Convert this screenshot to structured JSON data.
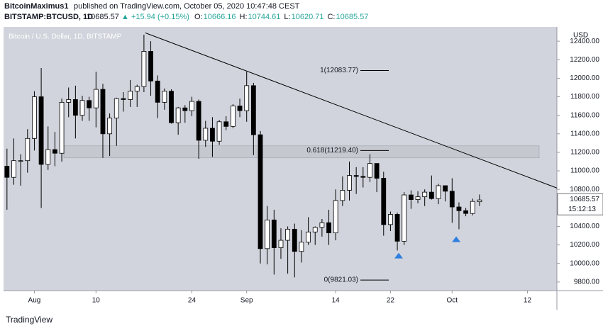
{
  "header": {
    "author": "BitcoinMaximus1",
    "published": "published on TradingView.com, October 05, 2020 10:47:48 CEST",
    "symbol": "BITSTAMP:BTCUSD, 1D",
    "change": "▲ +15.94 (+0.15%)",
    "ohlc": [
      {
        "label": "O:",
        "value": 10666.16
      },
      {
        "label": "H:",
        "value": 10744.61
      },
      {
        "label": "L:",
        "value": 10620.71
      },
      {
        "label": "C:",
        "value": 10685.57
      }
    ]
  },
  "footer": {
    "brand": "TradingView"
  },
  "chart_data": {
    "type": "candlestick",
    "title": "Bitcoin / U.S. Dollar, 1D, BITSTAMP",
    "y_axis_label": "USD",
    "background": "#d1d4dc",
    "up_color": "#ffffff",
    "down_color": "#000000",
    "edge_color": "#000000",
    "last_price": 10685.57,
    "countdown": "15:12:13",
    "categories": [
      null,
      null,
      null,
      null,
      null,
      null,
      null,
      null,
      null,
      null,
      null,
      null,
      null,
      null,
      null,
      null,
      null,
      null,
      null,
      null,
      null,
      null,
      null,
      null,
      null,
      null,
      null,
      null,
      null,
      null,
      null,
      null,
      null,
      null,
      null,
      null,
      null,
      null,
      null,
      null,
      null,
      null,
      null,
      null,
      null,
      null,
      null,
      null,
      null,
      null,
      null,
      null,
      null,
      null,
      null,
      null,
      null,
      null,
      null,
      null,
      null,
      null,
      null,
      null,
      null,
      null,
      null,
      null,
      null,
      null
    ],
    "open": [
      11050,
      10930,
      11110,
      11110,
      11350,
      11800,
      11070,
      11230,
      11190,
      11740,
      11770,
      11600,
      11760,
      11680,
      11880,
      11400,
      11570,
      11780,
      11770,
      11860,
      11910,
      12290,
      11970,
      11740,
      11860,
      11520,
      11680,
      11650,
      11750,
      11330,
      11460,
      11320,
      11530,
      11480,
      11700,
      11650,
      11920,
      11390,
      10160,
      10470,
      10170,
      10250,
      10370,
      10130,
      10230,
      10340,
      10390,
      10440,
      10330,
      10680,
      10790,
      10950,
      10940,
      10930,
      11080,
      10920,
      10420,
      10530,
      10240,
      10740,
      10690,
      10720,
      10770,
      10700,
      10840,
      10780,
      10610,
      10570,
      10540,
      10666.16
    ],
    "high": [
      11240,
      11350,
      11180,
      11450,
      11860,
      12110,
      11480,
      11420,
      11780,
      11900,
      11920,
      11810,
      11800,
      12070,
      11940,
      11620,
      11790,
      11850,
      11980,
      11930,
      12470,
      12400,
      12030,
      11890,
      11880,
      11690,
      11710,
      11800,
      11770,
      11540,
      11580,
      11550,
      11590,
      11720,
      11780,
      12070,
      11950,
      11430,
      10620,
      10580,
      10380,
      10400,
      10430,
      10360,
      10500,
      10400,
      10480,
      10580,
      10800,
      10940,
      11100,
      11040,
      11040,
      11180,
      11080,
      10990,
      10560,
      10550,
      10770,
      10790,
      10780,
      10800,
      10950,
      10860,
      10840,
      10920,
      10660,
      10600,
      10700,
      10744.61
    ],
    "low": [
      10580,
      10850,
      10840,
      10980,
      11220,
      10600,
      11010,
      11050,
      11100,
      11580,
      11350,
      11540,
      11540,
      11470,
      11140,
      11160,
      11270,
      11640,
      11690,
      11690,
      11850,
      11810,
      11570,
      11660,
      11510,
      11390,
      11520,
      11590,
      11130,
      11260,
      11150,
      11280,
      11440,
      11460,
      11580,
      11530,
      11170,
      10000,
      9990,
      9880,
      10050,
      9890,
      9850,
      10010,
      10200,
      10200,
      10290,
      10200,
      10250,
      10620,
      10680,
      10750,
      10820,
      10880,
      10770,
      10300,
      10350,
      10140,
      10200,
      10590,
      10650,
      10620,
      10690,
      10640,
      10670,
      10440,
      10370,
      10510,
      10520,
      10620.71
    ],
    "close": [
      10930,
      11110,
      11110,
      11350,
      11800,
      11070,
      11230,
      11190,
      11740,
      11770,
      11600,
      11760,
      11680,
      11880,
      11400,
      11570,
      11780,
      11770,
      11860,
      11910,
      12290,
      11970,
      11740,
      11860,
      11520,
      11680,
      11650,
      11750,
      11330,
      11460,
      11320,
      11530,
      11480,
      11700,
      11650,
      11920,
      11390,
      10160,
      10470,
      10170,
      10250,
      10370,
      10130,
      10230,
      10340,
      10390,
      10440,
      10330,
      10680,
      10790,
      10950,
      10940,
      10930,
      11080,
      10920,
      10420,
      10530,
      10240,
      10740,
      10690,
      10720,
      10770,
      10700,
      10840,
      10780,
      10610,
      10570,
      10540,
      10670,
      10685.57
    ],
    "xlim": [
      -0.5,
      80.3
    ],
    "xticks": [
      {
        "value": 4,
        "label": "Aug"
      },
      {
        "value": 13,
        "label": "10"
      },
      {
        "value": 27,
        "label": "24"
      },
      {
        "value": 35,
        "label": "Sep"
      },
      {
        "value": 48,
        "label": "14"
      },
      {
        "value": 56,
        "label": "22"
      },
      {
        "value": 65,
        "label": "Oct"
      },
      {
        "value": 76,
        "label": "12"
      }
    ],
    "ylim": [
      9707,
      12554
    ],
    "yticks": [
      {
        "value": 9800,
        "label": "9800.00"
      },
      {
        "value": 10000,
        "label": "10000.00"
      },
      {
        "value": 10200,
        "label": "10200.00"
      },
      {
        "value": 10400,
        "label": "10400.00"
      },
      {
        "value": 10800,
        "label": "10800.00"
      },
      {
        "value": 11000,
        "label": "11000.00"
      },
      {
        "value": 11200,
        "label": "11200.00"
      },
      {
        "value": 11400,
        "label": "11400.00"
      },
      {
        "value": 11600,
        "label": "11600.00"
      },
      {
        "value": 11800,
        "label": "11800.00"
      },
      {
        "value": 12000,
        "label": "12000.00"
      },
      {
        "value": 12200,
        "label": "12200.00"
      },
      {
        "value": 12400,
        "label": "12400.00"
      }
    ],
    "fib_levels": [
      {
        "value": 12083.77,
        "label": "1(12083.77)"
      },
      {
        "value": 11219.4,
        "label": "0.618(11219.40)"
      },
      {
        "value": 9821.03,
        "label": "0(9821.03)"
      }
    ],
    "zone": {
      "from": 11140,
      "to": 11270,
      "color": "#c4c7ce"
    },
    "trendline": {
      "x": [
        20.2,
        80.3
      ],
      "y": [
        12490,
        10815
      ]
    },
    "markers": {
      "color": "#2f7fe0",
      "x": [
        57.2,
        65.6
      ],
      "y": [
        10085,
        10262
      ]
    }
  }
}
